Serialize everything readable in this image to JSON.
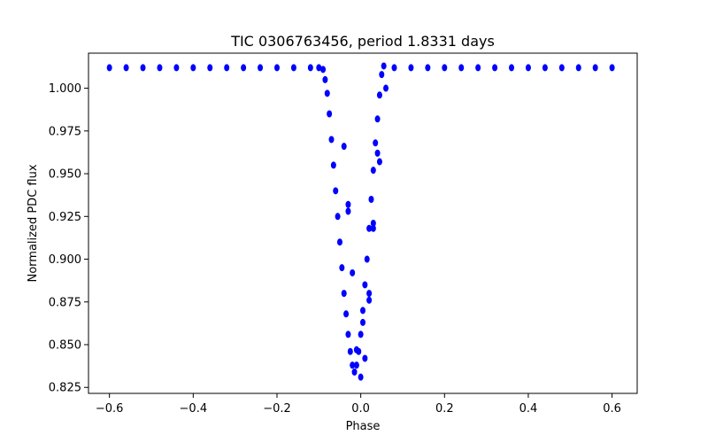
{
  "chart_data": {
    "type": "scatter",
    "title": "TIC 0306763456, period 1.8331 days",
    "xlabel": "Phase",
    "ylabel": "Normalized PDC flux",
    "xlim": [
      -0.65,
      0.66
    ],
    "ylim": [
      0.8215,
      1.0205
    ],
    "xticks": [
      -0.6,
      -0.4,
      -0.2,
      0.0,
      0.2,
      0.4,
      0.6
    ],
    "xtick_labels": [
      "−0.6",
      "−0.4",
      "−0.2",
      "0.0",
      "0.2",
      "0.4",
      "0.6"
    ],
    "yticks": [
      0.825,
      0.85,
      0.875,
      0.9,
      0.925,
      0.95,
      0.975,
      1.0
    ],
    "ytick_labels": [
      "0.825",
      "0.850",
      "0.875",
      "0.900",
      "0.925",
      "0.950",
      "0.975",
      "1.000"
    ],
    "grid": false,
    "marker_color": "#0000ff",
    "series": [
      {
        "name": "PDC flux",
        "x": [
          -0.6,
          -0.56,
          -0.52,
          -0.48,
          -0.44,
          -0.4,
          -0.36,
          -0.32,
          -0.28,
          -0.24,
          -0.2,
          -0.16,
          -0.12,
          -0.1,
          -0.09,
          -0.085,
          -0.08,
          -0.075,
          -0.07,
          -0.065,
          -0.06,
          -0.055,
          -0.05,
          -0.045,
          -0.04,
          -0.035,
          -0.03,
          -0.025,
          -0.02,
          -0.015,
          -0.01,
          -0.005,
          0.0,
          0.005,
          0.01,
          0.015,
          0.02,
          0.025,
          0.03,
          0.035,
          0.04,
          0.045,
          0.05,
          0.055,
          0.08,
          0.12,
          0.16,
          0.2,
          0.24,
          0.28,
          0.32,
          0.36,
          0.4,
          0.44,
          0.48,
          0.52,
          0.56,
          0.6,
          -0.04,
          -0.03,
          -0.03,
          -0.02,
          -0.01,
          0.0,
          0.005,
          0.01,
          0.02,
          0.02,
          0.03,
          0.03,
          0.04,
          0.045,
          0.06
        ],
        "y": [
          1.012,
          1.012,
          1.012,
          1.012,
          1.012,
          1.012,
          1.012,
          1.012,
          1.012,
          1.012,
          1.012,
          1.012,
          1.012,
          1.012,
          1.011,
          1.005,
          0.997,
          0.985,
          0.97,
          0.955,
          0.94,
          0.925,
          0.91,
          0.895,
          0.88,
          0.868,
          0.856,
          0.846,
          0.838,
          0.834,
          0.838,
          0.846,
          0.856,
          0.87,
          0.885,
          0.9,
          0.918,
          0.935,
          0.952,
          0.968,
          0.982,
          0.996,
          1.008,
          1.013,
          1.012,
          1.012,
          1.012,
          1.012,
          1.012,
          1.012,
          1.012,
          1.012,
          1.012,
          1.012,
          1.012,
          1.012,
          1.012,
          1.012,
          0.966,
          0.932,
          0.928,
          0.892,
          0.847,
          0.831,
          0.863,
          0.842,
          0.88,
          0.876,
          0.921,
          0.918,
          0.962,
          0.957,
          1.0
        ]
      }
    ]
  }
}
